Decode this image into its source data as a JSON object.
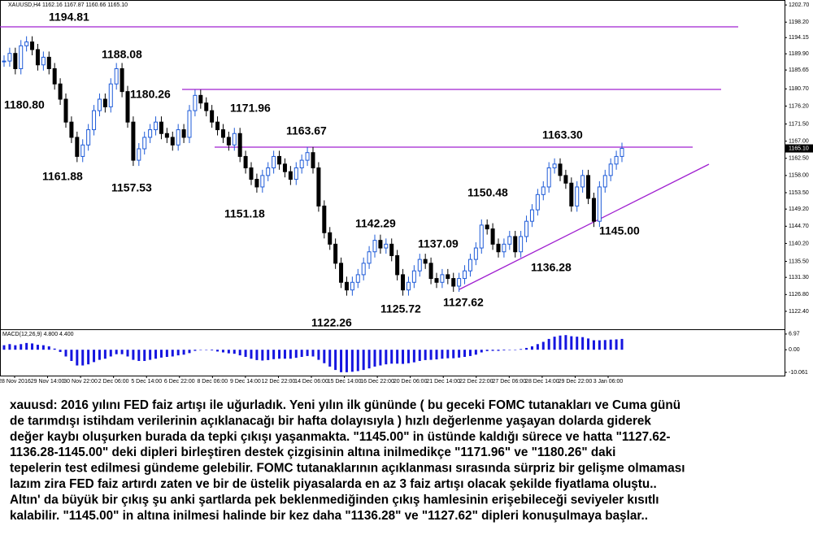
{
  "window": {
    "title": "XAUUSD,H4 1162.16 1167.87 1160.66 1165.10"
  },
  "price_chart": {
    "type": "candlestick",
    "closes": [
      1188,
      1190,
      1186,
      1192,
      1193,
      1191,
      1187,
      1189,
      1186,
      1182,
      1178,
      1172,
      1168,
      1163,
      1166,
      1170,
      1175,
      1178,
      1176,
      1182,
      1186,
      1180,
      1172,
      1162,
      1165,
      1168,
      1170,
      1172,
      1169,
      1168,
      1166,
      1170,
      1168,
      1175,
      1179,
      1177,
      1175,
      1172,
      1170,
      1168,
      1166,
      1169,
      1163,
      1160,
      1157,
      1155,
      1158,
      1160,
      1163,
      1161,
      1159,
      1157,
      1160,
      1162,
      1164,
      1160,
      1150,
      1143,
      1140,
      1135,
      1130,
      1128,
      1130,
      1132,
      1135,
      1138,
      1141,
      1139,
      1140,
      1137,
      1132,
      1128,
      1130,
      1133,
      1136,
      1135,
      1131,
      1130,
      1132,
      1131,
      1129,
      1131,
      1133,
      1136,
      1139,
      1145,
      1144,
      1140,
      1138,
      1140,
      1142,
      1138,
      1142,
      1146,
      1149,
      1153,
      1155,
      1160,
      1161,
      1158,
      1156,
      1150,
      1155,
      1158,
      1152,
      1146,
      1155,
      1158,
      1161,
      1163,
      1165.1
    ],
    "ylim": [
      1117.7,
      1204
    ],
    "yticks": [
      {
        "value": 1202.7,
        "label": "1202.70"
      },
      {
        "value": 1198.2,
        "label": "1198.20"
      },
      {
        "value": 1194.15,
        "label": "1194.15"
      },
      {
        "value": 1189.9,
        "label": "1189.90"
      },
      {
        "value": 1185.65,
        "label": "1185.65"
      },
      {
        "value": 1180.7,
        "label": "1180.70"
      },
      {
        "value": 1176.2,
        "label": "1176.20"
      },
      {
        "value": 1171.5,
        "label": "1171.50"
      },
      {
        "value": 1167,
        "label": "1167.00"
      },
      {
        "value": 1162.5,
        "label": "1162.50"
      },
      {
        "value": 1158,
        "label": "1158.00"
      },
      {
        "value": 1153.5,
        "label": "1153.50"
      },
      {
        "value": 1149.2,
        "label": "1149.20"
      },
      {
        "value": 1144.7,
        "label": "1144.70"
      },
      {
        "value": 1140.2,
        "label": "1140.20"
      },
      {
        "value": 1135.5,
        "label": "1135.50"
      },
      {
        "value": 1131.3,
        "label": "1131.30"
      },
      {
        "value": 1126.8,
        "label": "1126.80"
      },
      {
        "value": 1122.4,
        "label": "1122.40"
      }
    ],
    "last_price": {
      "value": 1165.1,
      "label": "1165.10"
    },
    "annotations": [
      "1194.81",
      "1188.08",
      "1180.80",
      "1180.26",
      "1171.96",
      "1163.67",
      "1161.88",
      "1157.53",
      "1151.18",
      "1142.29",
      "1150.48",
      "1163.30",
      "1145.00",
      "1137.09",
      "1136.28",
      "1125.72",
      "1127.62",
      "1122.26"
    ],
    "dates": [
      "28 Nov 2016",
      "29 Nov 14:00",
      "30 Nov 22:00",
      "2 Dec 06:00",
      "5 Dec 14:00",
      "6 Dec 22:00",
      "8 Dec 06:00",
      "9 Dec 14:00",
      "12 Dec 22:00",
      "14 Dec 06:00",
      "15 Dec 14:00",
      "16 Dec 22:00",
      "20 Dec 06:00",
      "21 Dec 14:00",
      "22 Dec 22:00",
      "27 Dec 06:00",
      "28 Dec 14:00",
      "29 Dec 22:00",
      "3 Jan 06:00"
    ]
  },
  "macd": {
    "title": "MACD(12,26,9) 4.800 4.400",
    "values": [
      2,
      2.5,
      2,
      2.5,
      3,
      2.8,
      2.2,
      2,
      1.5,
      0.5,
      -1,
      -3,
      -5,
      -7,
      -7,
      -6.5,
      -5.5,
      -4.5,
      -4,
      -3,
      -2,
      -2,
      -3,
      -4.5,
      -5,
      -5,
      -4.5,
      -4,
      -3.5,
      -3.2,
      -3,
      -2.5,
      -2.2,
      -1.5,
      -0.5,
      0,
      0,
      -0.3,
      -0.8,
      -1.2,
      -1.6,
      -1.8,
      -2.5,
      -3.2,
      -4,
      -4.6,
      -4.8,
      -4.6,
      -4.2,
      -4,
      -4,
      -4,
      -3.6,
      -3.2,
      -2.8,
      -3,
      -4.5,
      -6,
      -7.5,
      -9,
      -10,
      -10,
      -9.8,
      -9.5,
      -9,
      -8.3,
      -7.5,
      -7,
      -6.5,
      -6.2,
      -6.2,
      -6.3,
      -6,
      -5.6,
      -5,
      -4.6,
      -4.5,
      -4.3,
      -4,
      -3.8,
      -3.8,
      -3.5,
      -3.2,
      -2.8,
      -2.2,
      -1.2,
      -0.6,
      -0.5,
      -0.5,
      -0.3,
      0,
      0,
      0.3,
      0.8,
      1.5,
      2.5,
      3.5,
      4.8,
      5.8,
      6.3,
      6.5,
      6,
      5.8,
      5.6,
      5,
      4.2,
      4.2,
      4.3,
      4.5,
      4.6,
      4.8
    ],
    "ylim": [
      -11.5,
      9.1
    ],
    "yticks": [
      {
        "value": 6.97,
        "label": "6.97"
      },
      {
        "value": 0,
        "label": "0.00"
      },
      {
        "value": -10.061,
        "label": "-10.061"
      }
    ]
  },
  "commentary": {
    "lines": [
      "xauusd: 2016 yılını FED faiz artışı ile uğurladık. Yeni yılın ilk gününde ( bu geceki FOMC tutanakları ve Cuma günü",
      "de tarımdışı istihdam verilerinin açıklanacağı bir hafta dolayısıyla ) hızlı değerlenme yaşayan dolarda giderek",
      "değer kaybı oluşurken burada da tepki çıkışı yaşanmakta. \"1145.00\" in üstünde kaldığı sürece ve hatta \"1127.62-",
      "1136.28-1145.00\" deki dipleri birleştiren destek çizgisinin altına inilmedikçe \"1171.96\" ve \"1180.26\" daki",
      "tepelerin test edilmesi gündeme gelebilir. FOMC tutanaklarının açıklanması sırasında sürpriz bir gelişme olmaması",
      "lazım zira FED faiz artırdı zaten ve bir de üstelik piyasalarda en az 3 faiz artışı olacak şekilde fiyatlama oluştu..",
      "Altın' da büyük bir çıkış şu anki şartlarda pek beklenmediğinden çıkış hamlesinin erişebileceği seviyeler kısıtlı",
      "kalabilir. \"1145.00\" in altına inilmesi halinde bir kez daha \"1136.28\" ve \"1127.62\" dipleri konuşulmaya başlar.."
    ]
  }
}
